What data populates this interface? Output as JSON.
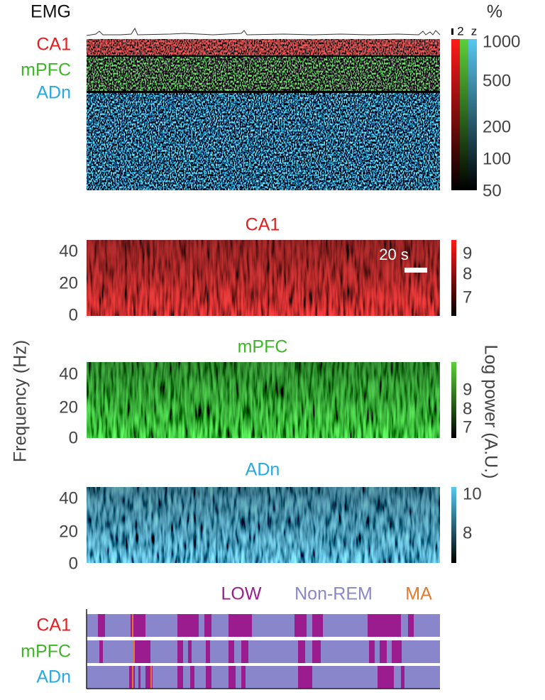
{
  "raster": {
    "labels": [
      "EMG",
      "CA1",
      "mPFC",
      "ADn"
    ],
    "colorbar": {
      "unit": "%",
      "scale_labels": [
        "2",
        "z"
      ],
      "ticks": [
        1000,
        500,
        200,
        100,
        50
      ]
    }
  },
  "spectrograms": {
    "y_axis_label": "Frequency (Hz)",
    "colorbar_label": "Log power (A.U.)",
    "scale_bar": "20 s",
    "panels": [
      {
        "title": "CA1",
        "yticks": [
          40,
          20,
          0
        ],
        "colorbar_ticks": [
          9,
          8,
          7
        ]
      },
      {
        "title": "mPFC",
        "yticks": [
          40,
          20,
          0
        ],
        "colorbar_ticks": [
          9,
          8,
          7
        ]
      },
      {
        "title": "ADn",
        "yticks": [
          40,
          20,
          0
        ],
        "colorbar_ticks": [
          10,
          8
        ]
      }
    ]
  },
  "states": {
    "legend": [
      "LOW",
      "Non-REM",
      "MA"
    ],
    "rows": [
      "CA1",
      "mPFC",
      "ADn"
    ]
  }
}
